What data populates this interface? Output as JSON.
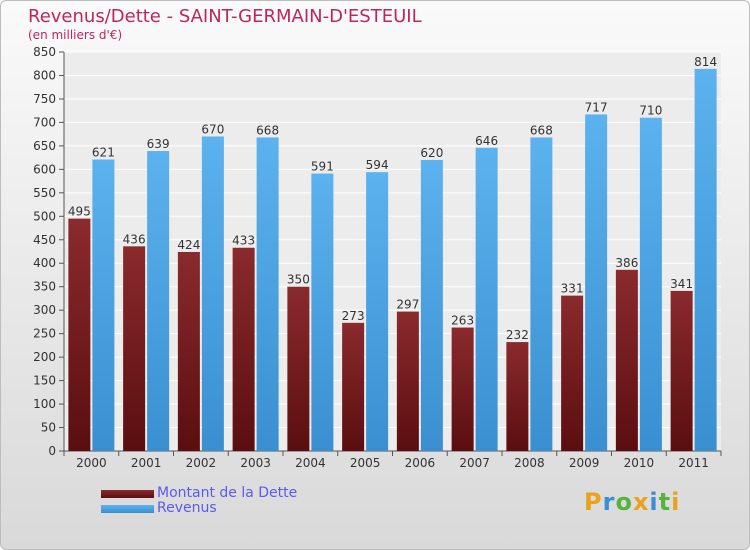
{
  "chart_data": {
    "type": "bar",
    "title": "Revenus/Dette - SAINT-GERMAIN-D'ESTEUIL",
    "subtitle": "(en milliers d'€)",
    "categories": [
      "2000",
      "2001",
      "2002",
      "2003",
      "2004",
      "2005",
      "2006",
      "2007",
      "2008",
      "2009",
      "2010",
      "2011"
    ],
    "series": [
      {
        "name": "Montant de la Dette",
        "values": [
          495,
          436,
          424,
          433,
          350,
          273,
          297,
          263,
          232,
          331,
          386,
          341
        ],
        "color": "#7b1e21"
      },
      {
        "name": "Revenus",
        "values": [
          621,
          639,
          670,
          668,
          591,
          594,
          620,
          646,
          668,
          717,
          710,
          814
        ],
        "color": "#4aa3e2"
      }
    ],
    "ylim": [
      0,
      850
    ],
    "yticks": [
      0,
      50,
      100,
      150,
      200,
      250,
      300,
      350,
      400,
      450,
      500,
      550,
      600,
      650,
      700,
      750,
      800,
      850
    ],
    "grid": true,
    "legend_position": "bottom-left"
  },
  "logo": {
    "letters": [
      "P",
      "r",
      "o",
      "x",
      "i",
      "t",
      "i"
    ],
    "colors": [
      "#e8a21d",
      "#3b8ed6",
      "#56b33c",
      "#e8a21d",
      "#3b8ed6",
      "#56b33c",
      "#e8a21d"
    ]
  }
}
